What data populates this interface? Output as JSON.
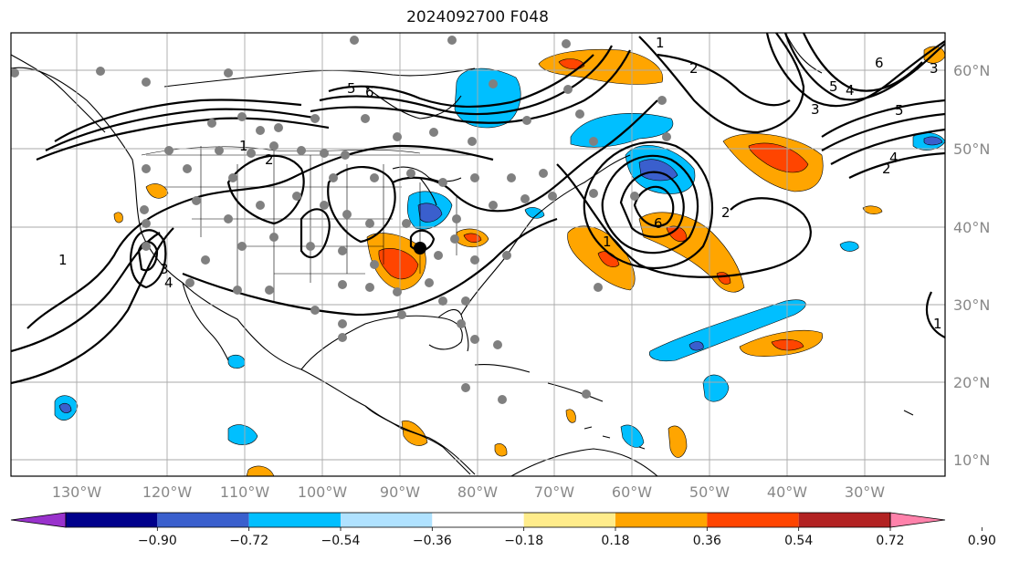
{
  "title": "2024092700 F048",
  "lon_labels": [
    "130°W",
    "120°W",
    "110°W",
    "100°W",
    "90°W",
    "80°W",
    "70°W",
    "60°W",
    "50°W",
    "40°W",
    "30°W"
  ],
  "lat_labels": [
    "60°N",
    "50°N",
    "40°N",
    "30°N",
    "20°N",
    "10°N"
  ],
  "colorbar": {
    "colors": [
      "#9932cc",
      "#00008b",
      "#3a5fcd",
      "#00bfff",
      "#b0e2ff",
      "#ffffff",
      "#ffec8b",
      "#ffa500",
      "#ff4500",
      "#b22222",
      "#ff82ab"
    ],
    "tick_labels": [
      "−0.90",
      "−0.72",
      "−0.54",
      "−0.36",
      "−0.18",
      "0.18",
      "0.36",
      "0.54",
      "0.72",
      "0.90"
    ]
  },
  "contour_labels": [
    "1",
    "2",
    "3",
    "4",
    "5",
    "6",
    "1",
    "2",
    "1",
    "6",
    "1",
    "2",
    "3",
    "4",
    "5",
    "6",
    "2",
    "4",
    "3",
    "5",
    "1"
  ],
  "map_colors": {
    "land_line": "#000000",
    "grid": "#aaaaaa",
    "station": "#808080"
  }
}
